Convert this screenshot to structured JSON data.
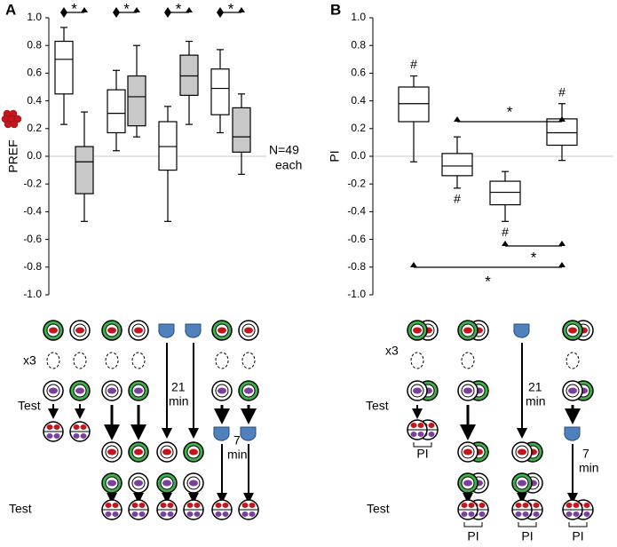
{
  "panels": [
    "A",
    "B"
  ],
  "chart_data": [
    {
      "type": "box",
      "ylabel": "PREF",
      "ylim": [
        -1,
        1
      ],
      "yticks": [
        {
          "value": 1,
          "label": "1.0"
        },
        {
          "value": 0.8,
          "label": "0.8"
        },
        {
          "value": 0.6,
          "label": "0.6"
        },
        {
          "value": 0.4,
          "label": "0.4"
        },
        {
          "value": 0.2,
          "label": "0.2"
        },
        {
          "value": 0,
          "label": "0.0"
        },
        {
          "value": -0.2,
          "label": "-0.2"
        },
        {
          "value": -0.4,
          "label": "-0.4"
        },
        {
          "value": -0.6,
          "label": "-0.6"
        },
        {
          "value": -0.8,
          "label": "-0.8"
        },
        {
          "value": -1,
          "label": "-1.0"
        }
      ],
      "boxes": [
        {
          "low": 0.23,
          "q1": 0.45,
          "median": 0.7,
          "q3": 0.83,
          "high": 0.93,
          "color": "#ffffff"
        },
        {
          "low": -0.47,
          "q1": -0.27,
          "median": -0.04,
          "q3": 0.07,
          "high": 0.32,
          "color": "#c8c8c8"
        },
        {
          "low": 0.04,
          "q1": 0.17,
          "median": 0.31,
          "q3": 0.48,
          "high": 0.62,
          "color": "#ffffff"
        },
        {
          "low": 0.14,
          "q1": 0.22,
          "median": 0.43,
          "q3": 0.58,
          "high": 0.8,
          "color": "#c8c8c8"
        },
        {
          "low": -0.47,
          "q1": -0.1,
          "median": 0.07,
          "q3": 0.25,
          "high": 0.36,
          "color": "#ffffff"
        },
        {
          "low": 0.23,
          "q1": 0.44,
          "median": 0.58,
          "q3": 0.73,
          "high": 0.83,
          "color": "#c8c8c8"
        },
        {
          "low": 0.17,
          "q1": 0.3,
          "median": 0.49,
          "q3": 0.63,
          "high": 0.77,
          "color": "#ffffff"
        },
        {
          "low": -0.13,
          "q1": 0.03,
          "median": 0.14,
          "q3": 0.35,
          "high": 0.45,
          "color": "#c8c8c8"
        }
      ],
      "significance": [
        "*",
        "*",
        "*",
        "*"
      ],
      "annotations": [
        "N=49",
        "each"
      ]
    },
    {
      "type": "box",
      "ylabel": "PI",
      "ylim": [
        -1,
        1
      ],
      "yticks": [
        {
          "value": 1,
          "label": "1.0"
        },
        {
          "value": 0.8,
          "label": "0.8"
        },
        {
          "value": 0.6,
          "label": "0.6"
        },
        {
          "value": 0.4,
          "label": "0.4"
        },
        {
          "value": 0.2,
          "label": "0.2"
        },
        {
          "value": 0,
          "label": "0.0"
        },
        {
          "value": -0.2,
          "label": "-0.2"
        },
        {
          "value": -0.4,
          "label": "-0.4"
        },
        {
          "value": -0.6,
          "label": "-0.6"
        },
        {
          "value": -0.8,
          "label": "-0.8"
        },
        {
          "value": -1,
          "label": "-1.0"
        }
      ],
      "boxes": [
        {
          "low": -0.04,
          "q1": 0.25,
          "median": 0.38,
          "q3": 0.5,
          "high": 0.58,
          "color": "#ffffff"
        },
        {
          "low": -0.23,
          "q1": -0.14,
          "median": -0.07,
          "q3": 0.02,
          "high": 0.14,
          "color": "#ffffff"
        },
        {
          "low": -0.47,
          "q1": -0.35,
          "median": -0.26,
          "q3": -0.18,
          "high": -0.11,
          "color": "#ffffff"
        },
        {
          "low": -0.03,
          "q1": 0.08,
          "median": 0.17,
          "q3": 0.27,
          "high": 0.38,
          "color": "#ffffff"
        }
      ],
      "significance": [
        "*",
        "*",
        "*"
      ],
      "box_markers": [
        "#",
        "#",
        "#",
        "#"
      ]
    }
  ],
  "diagram_a": {
    "repeat": "x3",
    "test": [
      "Test",
      "Test"
    ],
    "waits": [
      [
        "21",
        "min"
      ],
      [
        "7",
        "min"
      ]
    ]
  },
  "diagram_b": {
    "repeat": "x3",
    "test": [
      "Test",
      "Test"
    ],
    "waits": [
      [
        "21",
        "min"
      ],
      [
        "7",
        "min"
      ]
    ],
    "index": [
      "PI",
      "PI",
      "PI",
      "PI"
    ]
  }
}
